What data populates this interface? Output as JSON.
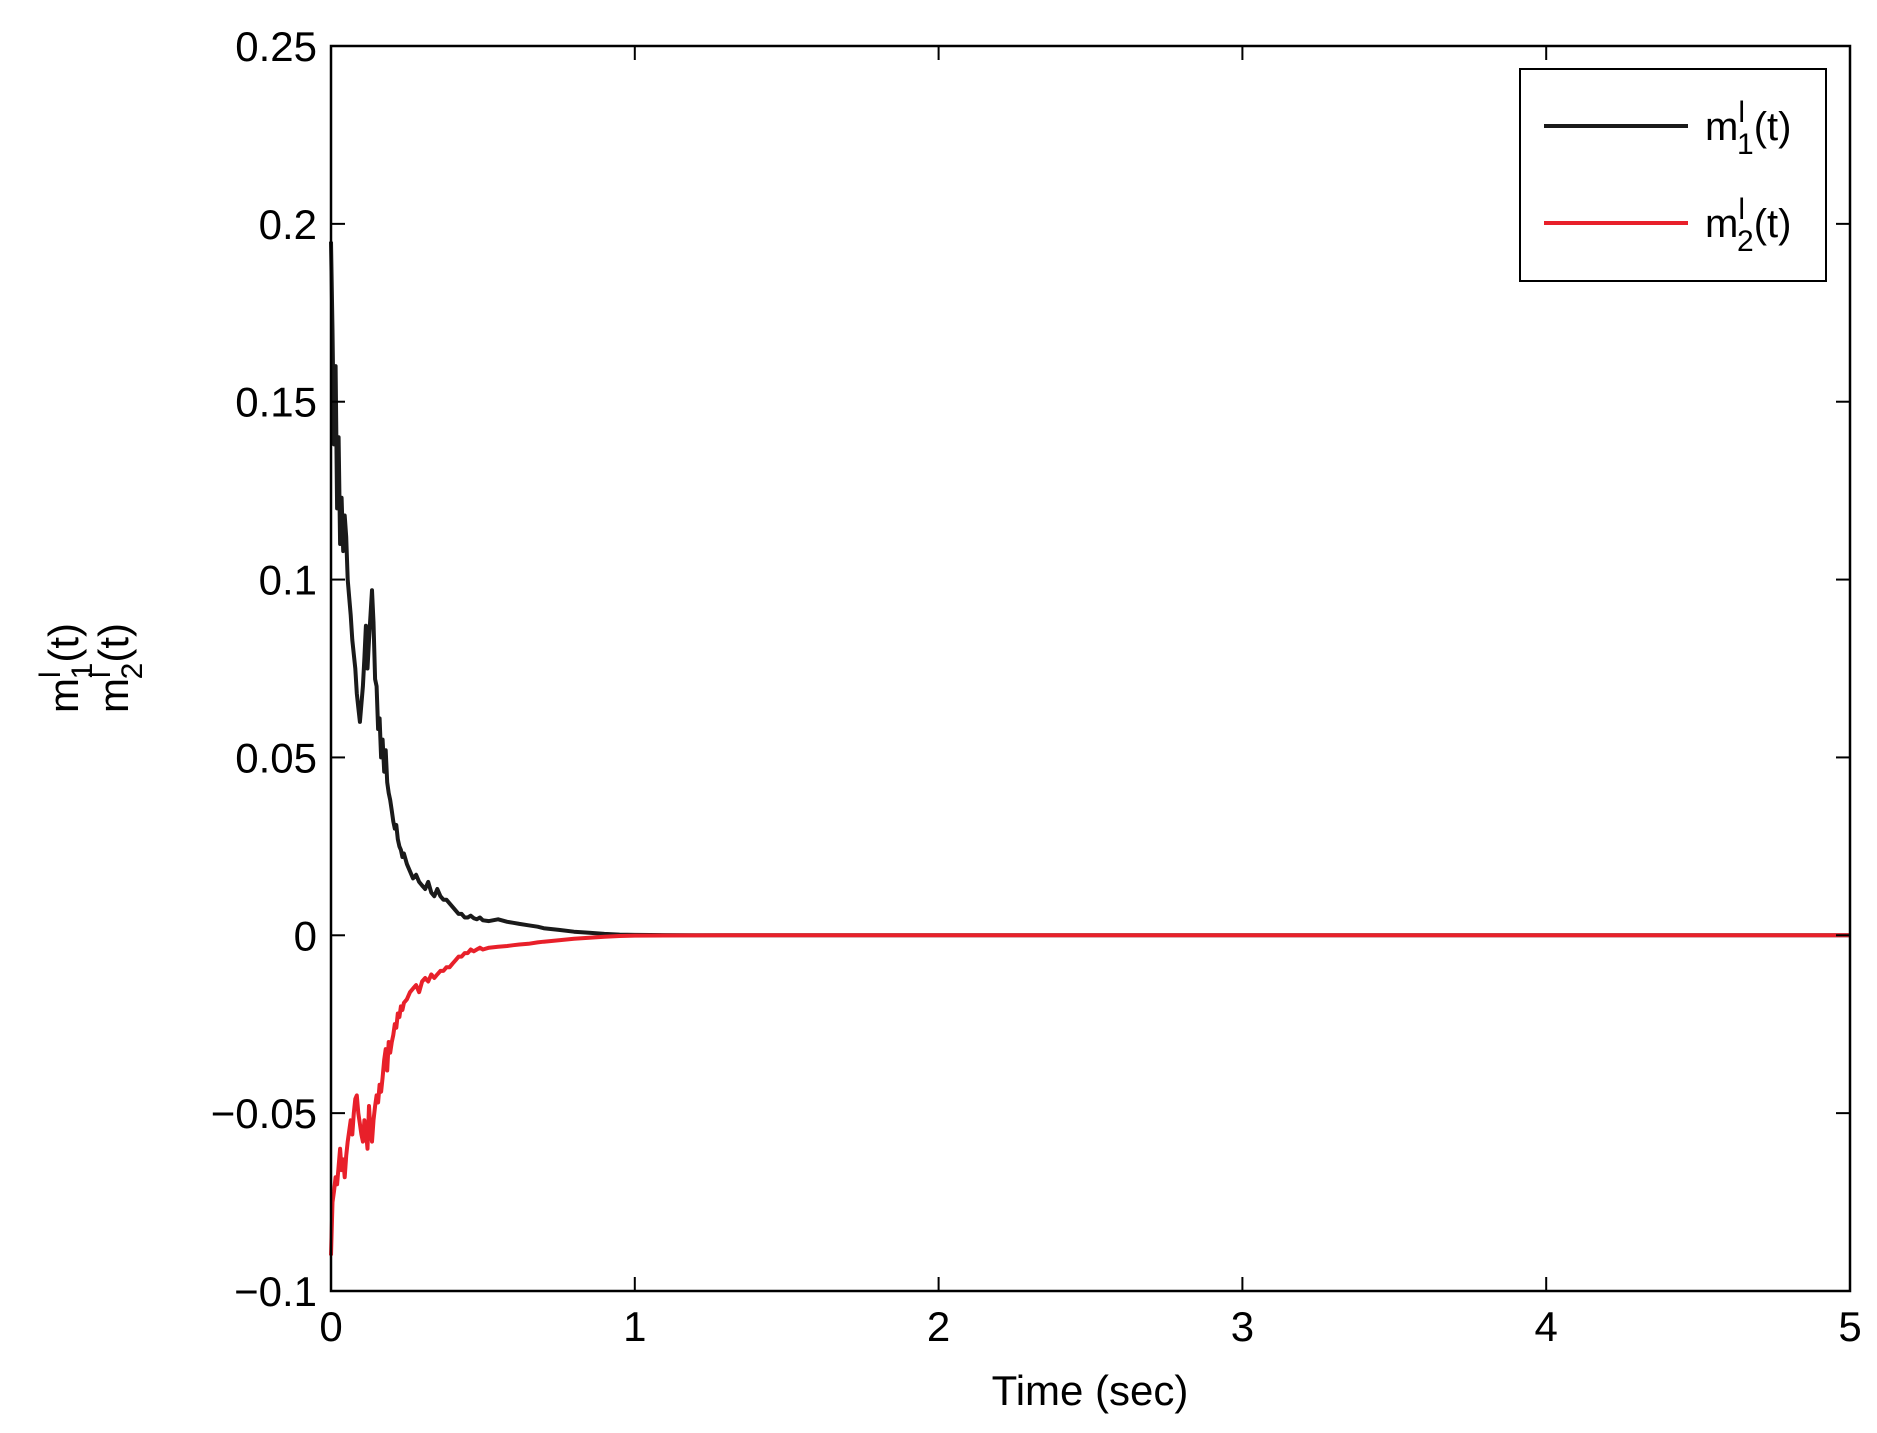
{
  "chart_data": {
    "type": "line",
    "title": "",
    "xlabel": "Time (sec)",
    "ylabel": {
      "line1": {
        "base": "m",
        "sup": "l",
        "sub": "1",
        "tail": "(t)"
      },
      "line2": {
        "base": "m",
        "sup": "l",
        "sub": "2",
        "tail": "(t)"
      }
    },
    "xlim": [
      0,
      5
    ],
    "ylim": [
      -0.1,
      0.25
    ],
    "xticks": [
      0,
      1,
      2,
      3,
      4,
      5
    ],
    "xtick_labels": [
      "0",
      "1",
      "2",
      "3",
      "4",
      "5"
    ],
    "yticks": [
      -0.1,
      -0.05,
      0,
      0.05,
      0.1,
      0.15,
      0.2,
      0.25
    ],
    "ytick_labels": [
      "−0.1",
      "−0.05",
      "0",
      "0.05",
      "0.1",
      "0.15",
      "0.2",
      "0.25"
    ],
    "grid": false,
    "legend_position": "top-right",
    "series": [
      {
        "name": {
          "base": "m",
          "sup": "l",
          "sub": "1",
          "tail": "(t)"
        },
        "color": "#1a1a1a",
        "x": [
          0,
          0.005,
          0.01,
          0.015,
          0.02,
          0.025,
          0.03,
          0.035,
          0.04,
          0.045,
          0.05,
          0.055,
          0.06,
          0.065,
          0.07,
          0.075,
          0.08,
          0.085,
          0.09,
          0.095,
          0.1,
          0.105,
          0.11,
          0.115,
          0.12,
          0.125,
          0.13,
          0.135,
          0.14,
          0.145,
          0.15,
          0.155,
          0.16,
          0.165,
          0.17,
          0.175,
          0.18,
          0.185,
          0.19,
          0.195,
          0.2,
          0.205,
          0.21,
          0.215,
          0.22,
          0.225,
          0.23,
          0.235,
          0.24,
          0.25,
          0.26,
          0.27,
          0.28,
          0.29,
          0.3,
          0.31,
          0.32,
          0.33,
          0.34,
          0.35,
          0.36,
          0.37,
          0.38,
          0.39,
          0.4,
          0.41,
          0.42,
          0.43,
          0.44,
          0.45,
          0.46,
          0.47,
          0.48,
          0.49,
          0.5,
          0.52,
          0.55,
          0.58,
          0.6,
          0.62,
          0.65,
          0.68,
          0.7,
          0.75,
          0.8,
          0.85,
          0.9,
          0.95,
          1.0,
          1.1,
          1.2,
          1.3,
          1.5,
          2.0,
          3.0,
          4.0,
          5.0
        ],
        "y": [
          0.195,
          0.17,
          0.138,
          0.16,
          0.12,
          0.14,
          0.11,
          0.123,
          0.108,
          0.118,
          0.112,
          0.1,
          0.095,
          0.09,
          0.083,
          0.079,
          0.075,
          0.068,
          0.064,
          0.06,
          0.065,
          0.07,
          0.078,
          0.087,
          0.075,
          0.083,
          0.09,
          0.097,
          0.088,
          0.072,
          0.07,
          0.058,
          0.061,
          0.05,
          0.055,
          0.046,
          0.052,
          0.043,
          0.04,
          0.038,
          0.035,
          0.032,
          0.03,
          0.031,
          0.027,
          0.025,
          0.024,
          0.022,
          0.023,
          0.02,
          0.018,
          0.016,
          0.017,
          0.015,
          0.014,
          0.013,
          0.015,
          0.012,
          0.011,
          0.013,
          0.011,
          0.01,
          0.01,
          0.009,
          0.008,
          0.007,
          0.006,
          0.006,
          0.005,
          0.005,
          0.0055,
          0.0048,
          0.0045,
          0.005,
          0.0042,
          0.004,
          0.0045,
          0.0038,
          0.0035,
          0.0032,
          0.0028,
          0.0024,
          0.002,
          0.0015,
          0.001,
          0.0007,
          0.0004,
          0.0002,
          0.0001,
          5e-05,
          2e-05,
          1e-05,
          0,
          0,
          0,
          0,
          0
        ]
      },
      {
        "name": {
          "base": "m",
          "sup": "l",
          "sub": "2",
          "tail": "(t)"
        },
        "color": "#e8202a",
        "x": [
          0,
          0.005,
          0.01,
          0.015,
          0.02,
          0.025,
          0.03,
          0.035,
          0.04,
          0.045,
          0.05,
          0.055,
          0.06,
          0.065,
          0.07,
          0.075,
          0.08,
          0.085,
          0.09,
          0.095,
          0.1,
          0.105,
          0.11,
          0.115,
          0.12,
          0.125,
          0.13,
          0.135,
          0.14,
          0.145,
          0.15,
          0.155,
          0.16,
          0.165,
          0.17,
          0.175,
          0.18,
          0.185,
          0.19,
          0.195,
          0.2,
          0.205,
          0.21,
          0.215,
          0.22,
          0.225,
          0.23,
          0.235,
          0.24,
          0.25,
          0.26,
          0.27,
          0.28,
          0.29,
          0.3,
          0.31,
          0.32,
          0.33,
          0.34,
          0.35,
          0.36,
          0.37,
          0.38,
          0.39,
          0.4,
          0.41,
          0.42,
          0.43,
          0.44,
          0.45,
          0.46,
          0.47,
          0.48,
          0.49,
          0.5,
          0.52,
          0.55,
          0.58,
          0.6,
          0.62,
          0.65,
          0.68,
          0.7,
          0.75,
          0.8,
          0.85,
          0.9,
          0.95,
          1.0,
          1.1,
          1.2,
          1.3,
          1.5,
          2.0,
          3.0,
          4.0,
          5.0
        ],
        "y": [
          -0.09,
          -0.075,
          -0.072,
          -0.068,
          -0.07,
          -0.065,
          -0.06,
          -0.066,
          -0.063,
          -0.068,
          -0.062,
          -0.058,
          -0.055,
          -0.052,
          -0.056,
          -0.05,
          -0.046,
          -0.045,
          -0.05,
          -0.053,
          -0.056,
          -0.058,
          -0.052,
          -0.055,
          -0.06,
          -0.048,
          -0.055,
          -0.058,
          -0.052,
          -0.048,
          -0.045,
          -0.047,
          -0.042,
          -0.044,
          -0.04,
          -0.035,
          -0.032,
          -0.038,
          -0.03,
          -0.033,
          -0.03,
          -0.028,
          -0.025,
          -0.026,
          -0.022,
          -0.023,
          -0.02,
          -0.021,
          -0.019,
          -0.018,
          -0.016,
          -0.015,
          -0.014,
          -0.016,
          -0.013,
          -0.012,
          -0.013,
          -0.011,
          -0.012,
          -0.011,
          -0.01,
          -0.01,
          -0.009,
          -0.009,
          -0.008,
          -0.007,
          -0.006,
          -0.006,
          -0.005,
          -0.005,
          -0.004,
          -0.0045,
          -0.004,
          -0.0035,
          -0.004,
          -0.0035,
          -0.0032,
          -0.003,
          -0.0028,
          -0.0026,
          -0.0024,
          -0.002,
          -0.0018,
          -0.0014,
          -0.001,
          -0.0007,
          -0.0004,
          -0.0002,
          -0.0001,
          -5e-05,
          -2e-05,
          -1e-05,
          0,
          0,
          0,
          0,
          0
        ]
      }
    ]
  }
}
